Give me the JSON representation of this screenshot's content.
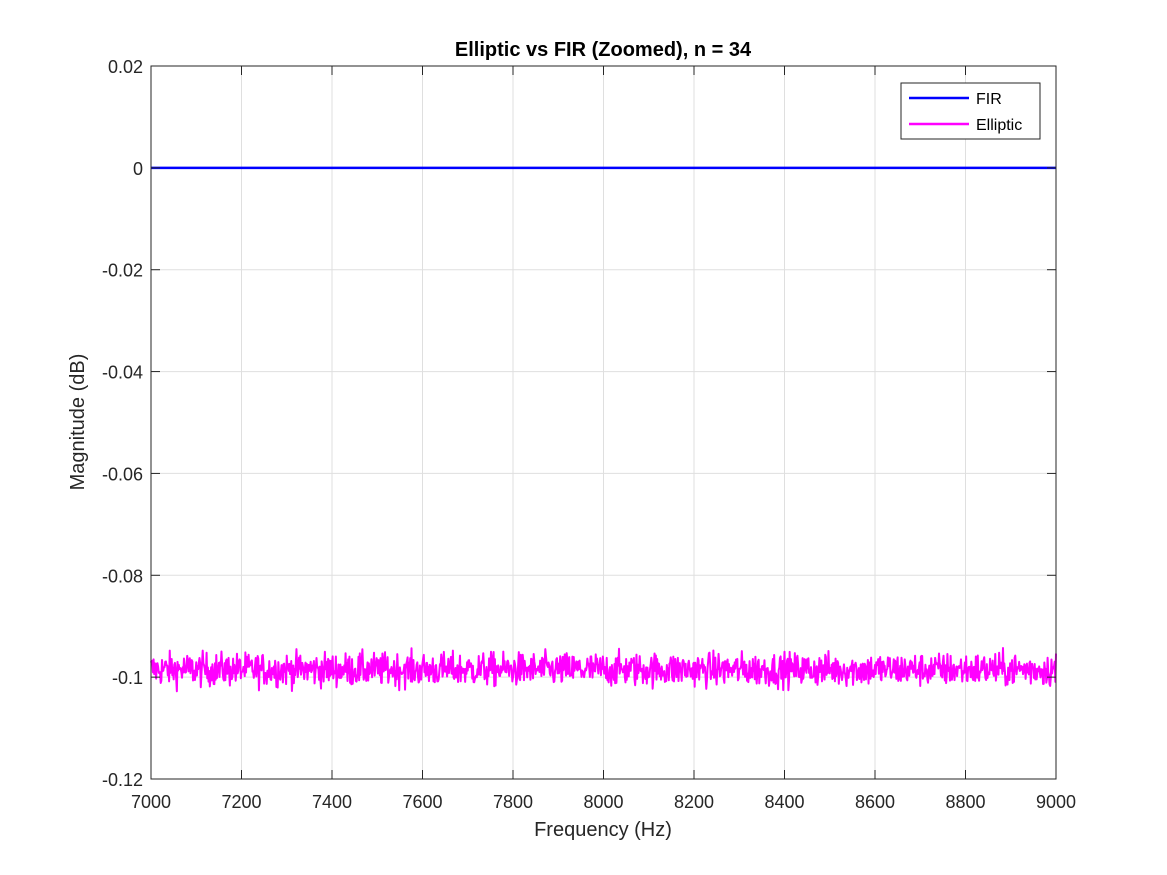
{
  "chart_data": {
    "type": "line",
    "title": "Elliptic vs FIR (Zoomed), n = 34",
    "xlabel": "Frequency (Hz)",
    "ylabel": "Magnitude (dB)",
    "xlim": [
      7000,
      9000
    ],
    "ylim": [
      -0.12,
      0.02
    ],
    "xticks": [
      7000,
      7200,
      7400,
      7600,
      7800,
      8000,
      8200,
      8400,
      8600,
      8800,
      9000
    ],
    "xtick_labels": [
      "7000",
      "7200",
      "7400",
      "7600",
      "7800",
      "8000",
      "8200",
      "8400",
      "8600",
      "8800",
      "9000"
    ],
    "yticks": [
      0.02,
      0,
      -0.02,
      -0.04,
      -0.06,
      -0.08,
      -0.1,
      -0.12
    ],
    "ytick_labels": [
      "0.02",
      "0",
      "-0.02",
      "-0.04",
      "-0.06",
      "-0.08",
      "-0.1",
      "-0.12"
    ],
    "grid": true,
    "legend_position": "top-right",
    "series": [
      {
        "name": "FIR",
        "color": "#0000ff",
        "x": [
          7000,
          9000
        ],
        "y": [
          0,
          0
        ]
      },
      {
        "name": "Elliptic",
        "color": "#ff00ff",
        "style": "noisy ripple around mean",
        "x": [
          7000,
          7100,
          7200,
          7300,
          7400,
          7500,
          7600,
          7700,
          7800,
          7900,
          8000,
          8100,
          8200,
          8300,
          8400,
          8500,
          8600,
          8700,
          8800,
          8900,
          9000
        ],
        "y": [
          -0.099,
          -0.098,
          -0.098,
          -0.099,
          -0.098,
          -0.098,
          -0.099,
          -0.098,
          -0.098,
          -0.099,
          -0.098,
          -0.098,
          -0.099,
          -0.098,
          -0.098,
          -0.099,
          -0.098,
          -0.098,
          -0.099,
          -0.098,
          -0.098
        ],
        "approx_mean": -0.0985,
        "approx_range": [
          -0.104,
          -0.093
        ]
      }
    ]
  }
}
